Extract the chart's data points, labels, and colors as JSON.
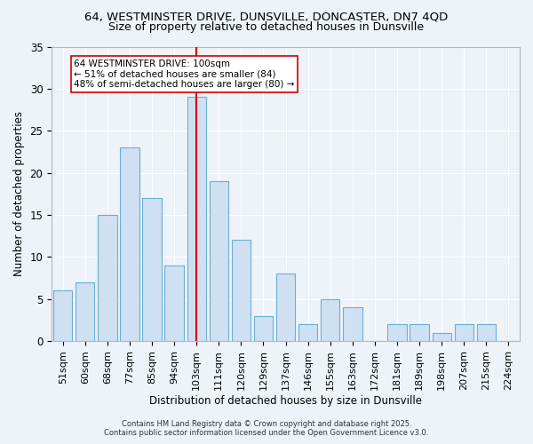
{
  "title_line1": "64, WESTMINSTER DRIVE, DUNSVILLE, DONCASTER, DN7 4QD",
  "title_line2": "Size of property relative to detached houses in Dunsville",
  "xlabel": "Distribution of detached houses by size in Dunsville",
  "ylabel": "Number of detached properties",
  "categories": [
    "51sqm",
    "60sqm",
    "68sqm",
    "77sqm",
    "85sqm",
    "94sqm",
    "103sqm",
    "111sqm",
    "120sqm",
    "129sqm",
    "137sqm",
    "146sqm",
    "155sqm",
    "163sqm",
    "172sqm",
    "181sqm",
    "189sqm",
    "198sqm",
    "207sqm",
    "215sqm",
    "224sqm"
  ],
  "values": [
    6,
    7,
    15,
    23,
    17,
    9,
    29,
    19,
    12,
    3,
    8,
    2,
    5,
    4,
    0,
    2,
    2,
    1,
    2,
    2,
    0
  ],
  "bar_color": "#cfe0f3",
  "bar_edge_color": "#6aaed6",
  "vline_x_index": 6,
  "vline_color": "#cc0000",
  "ylim": [
    0,
    35
  ],
  "yticks": [
    0,
    5,
    10,
    15,
    20,
    25,
    30,
    35
  ],
  "annotation_title": "64 WESTMINSTER DRIVE: 100sqm",
  "annotation_line1": "← 51% of detached houses are smaller (84)",
  "annotation_line2": "48% of semi-detached houses are larger (80) →",
  "annotation_box_color": "#ffffff",
  "annotation_box_edge": "#cc0000",
  "footer_line1": "Contains HM Land Registry data © Crown copyright and database right 2025.",
  "footer_line2": "Contains public sector information licensed under the Open Government Licence v3.0.",
  "background_color": "#eef2f9",
  "grid_color": "#ffffff",
  "title1_fontsize": 9.5,
  "title2_fontsize": 9,
  "tick_fontsize": 8,
  "axis_label_fontsize": 8.5
}
